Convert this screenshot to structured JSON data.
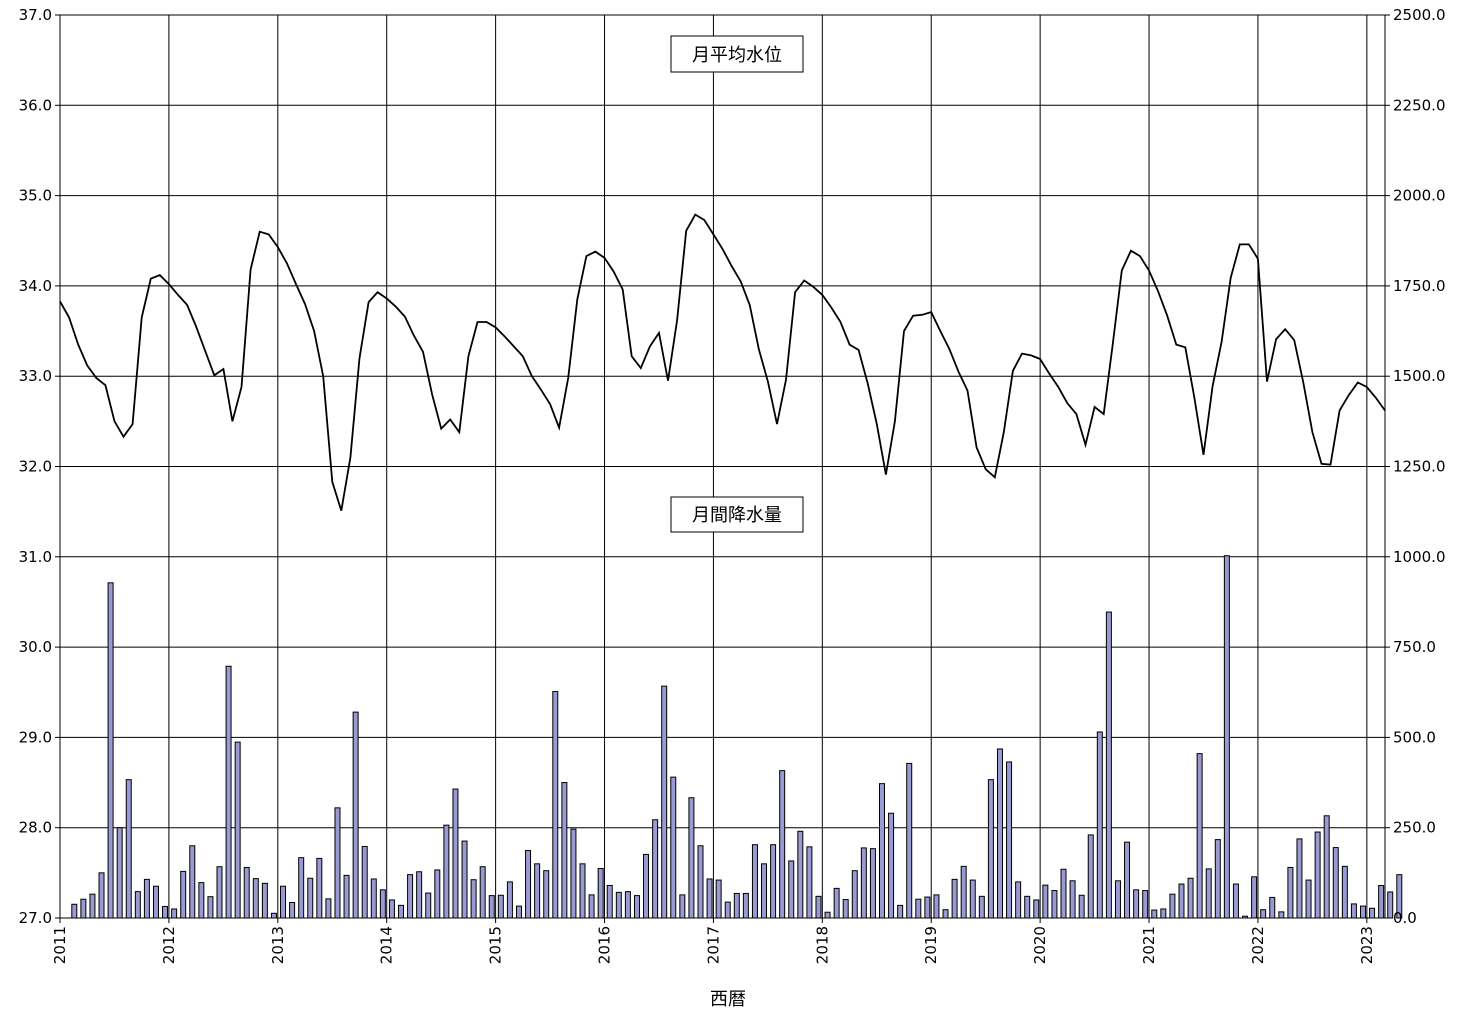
{
  "chart_data": {
    "type": "bar+line",
    "xlabel": "西暦",
    "x_ticks": [
      "2011",
      "2012",
      "2013",
      "2014",
      "2015",
      "2016",
      "2017",
      "2018",
      "2019",
      "2020",
      "2021",
      "2022",
      "2023"
    ],
    "x_range": [
      "2011-01",
      "2023-03"
    ],
    "y_left": {
      "range": [
        27.0,
        37.0
      ],
      "ticks": [
        "27.0",
        "28.0",
        "29.0",
        "30.0",
        "31.0",
        "32.0",
        "33.0",
        "34.0",
        "35.0",
        "36.0",
        "37.0"
      ]
    },
    "y_right": {
      "range": [
        0,
        2500
      ],
      "ticks": [
        "0.0",
        "250.0",
        "500.0",
        "750.0",
        "1000.0",
        "1250.0",
        "1500.0",
        "1750.0",
        "2000.0",
        "2250.0",
        "2500.0"
      ]
    },
    "grid": true,
    "series": [
      {
        "name": "月平均水位",
        "type": "line",
        "axis": "left",
        "color": "#000000",
        "values": [
          33.83,
          33.65,
          33.35,
          33.12,
          32.98,
          32.9,
          32.5,
          32.33,
          32.47,
          33.65,
          34.08,
          34.12,
          34.02,
          33.9,
          33.79,
          33.55,
          33.28,
          33.01,
          33.08,
          32.5,
          32.88,
          34.18,
          34.6,
          34.57,
          34.43,
          34.25,
          34.02,
          33.8,
          33.5,
          33.0,
          31.83,
          31.51,
          32.1,
          33.2,
          33.82,
          33.93,
          33.86,
          33.77,
          33.66,
          33.45,
          33.27,
          32.8,
          32.42,
          32.52,
          32.38,
          33.22,
          33.6,
          33.6,
          33.54,
          33.44,
          33.33,
          33.22,
          33.0,
          32.85,
          32.69,
          32.43,
          32.98,
          33.85,
          34.33,
          34.38,
          34.31,
          34.16,
          33.96,
          33.22,
          33.09,
          33.33,
          33.48,
          32.95,
          33.62,
          34.61,
          34.79,
          34.73,
          34.57,
          34.41,
          34.22,
          34.05,
          33.79,
          33.3,
          32.94,
          32.47,
          32.96,
          33.93,
          34.06,
          33.99,
          33.9,
          33.76,
          33.6,
          33.35,
          33.29,
          32.92,
          32.47,
          31.91,
          32.5,
          33.5,
          33.67,
          33.68,
          33.71,
          33.5,
          33.3,
          33.05,
          32.84,
          32.21,
          31.97,
          31.88,
          32.38,
          33.06,
          33.25,
          33.23,
          33.19,
          33.03,
          32.88,
          32.7,
          32.58,
          32.24,
          32.66,
          32.58,
          33.35,
          34.17,
          34.39,
          34.33,
          34.17,
          33.94,
          33.67,
          33.35,
          33.32,
          32.76,
          32.13,
          32.89,
          33.38,
          34.09,
          34.46,
          34.46,
          34.3,
          32.94,
          33.41,
          33.52,
          33.4,
          32.93,
          32.38,
          32.03,
          32.02,
          32.62,
          32.79,
          32.93,
          32.88,
          32.76,
          32.62
        ]
      },
      {
        "name": "月間降水量",
        "type": "bar",
        "axis": "right",
        "color": "#9a9ad2",
        "values": [
          0,
          38,
          52,
          66,
          125,
          928,
          250,
          383,
          73,
          107,
          88,
          32,
          25,
          129,
          200,
          98,
          59,
          142,
          697,
          487,
          140,
          109,
          96,
          13,
          88,
          43,
          167,
          110,
          165,
          53,
          305,
          118,
          570,
          198,
          108,
          78,
          50,
          35,
          120,
          128,
          69,
          133,
          257,
          357,
          213,
          106,
          142,
          62,
          63,
          100,
          33,
          187,
          150,
          131,
          627,
          375,
          246,
          150,
          64,
          137,
          90,
          71,
          73,
          62,
          176,
          272,
          642,
          390,
          64,
          333,
          200,
          108,
          105,
          44,
          68,
          68,
          203,
          150,
          203,
          408,
          158,
          240,
          197,
          60,
          16,
          82,
          51,
          131,
          194,
          192,
          372,
          290,
          35,
          428,
          52,
          58,
          64,
          23,
          107,
          143,
          105,
          60,
          383,
          468,
          432,
          100,
          60,
          50,
          91,
          76,
          135,
          103,
          63,
          230,
          515,
          847,
          103,
          210,
          78,
          76,
          22,
          25,
          66,
          94,
          110,
          455,
          136,
          217,
          1003,
          94,
          5,
          114,
          23,
          57,
          17,
          140,
          219,
          105,
          238,
          283,
          195,
          143,
          39,
          33,
          27,
          90,
          72,
          120
        ]
      }
    ],
    "annotations": [
      "月平均水位",
      "月間降水量"
    ]
  }
}
